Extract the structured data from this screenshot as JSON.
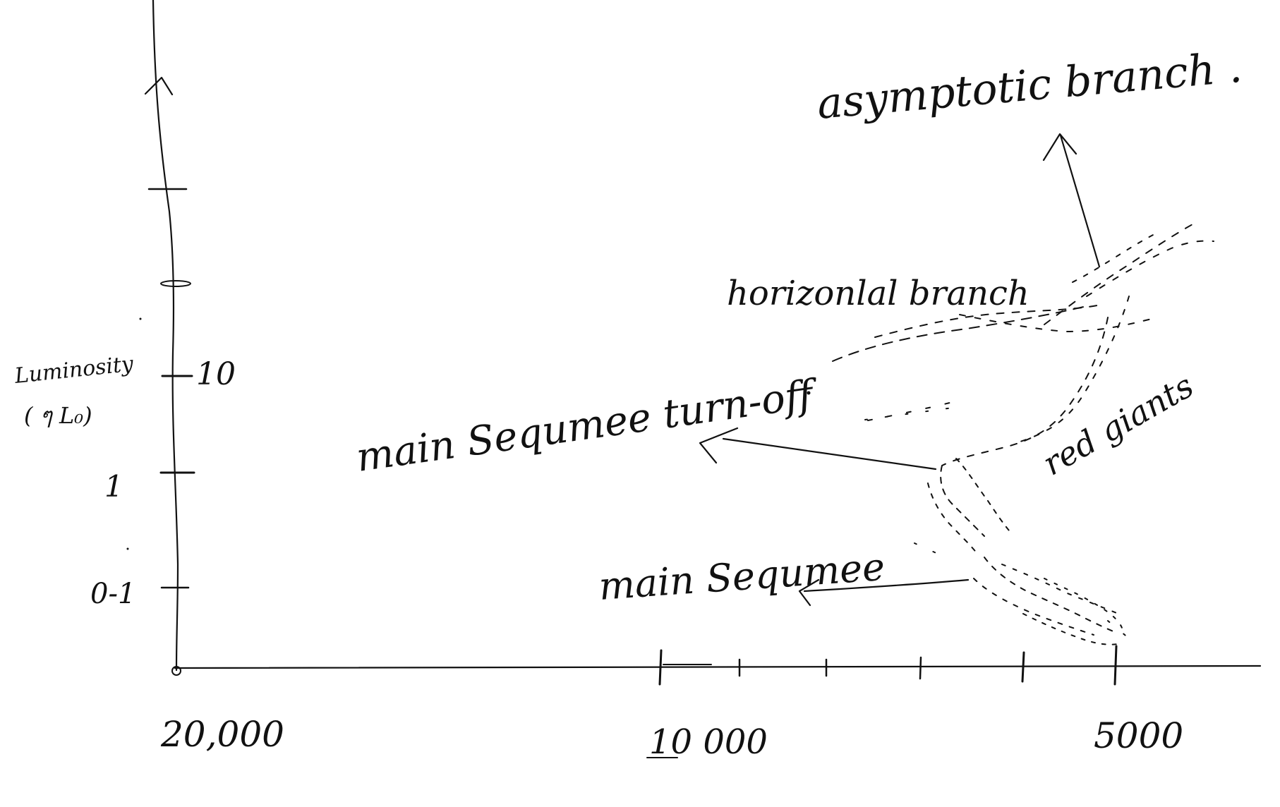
{
  "y_axis": {
    "label_line1": "Luminosity",
    "label_line2": "( ๆ L₀)",
    "ticks": [
      "10",
      "1",
      "0-1"
    ]
  },
  "x_axis": {
    "ticks": [
      "20,000",
      "10 000",
      "5000"
    ]
  },
  "annotations": {
    "asymptotic_branch": "asymptotic branch .",
    "horizontal_branch": "horizonlal branch",
    "turn_off": "main Sequmee turn-off",
    "red_giants": "red giants",
    "main_sequence": "main Sequmee"
  },
  "colors": {
    "ink": "#111111",
    "background": "#ffffff"
  }
}
